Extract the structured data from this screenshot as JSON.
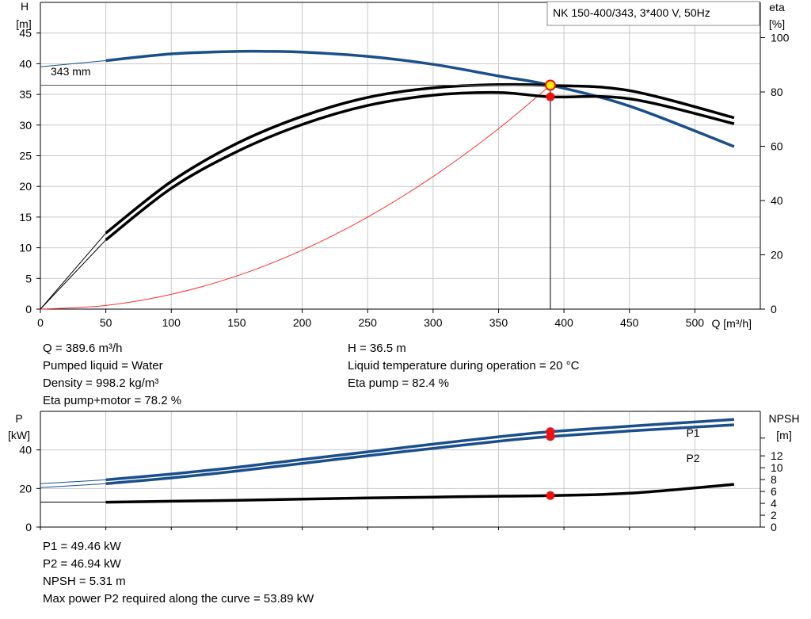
{
  "chart_data": [
    {
      "type": "line",
      "title": "NK 150-400/343, 3*400 V, 50Hz",
      "ylabel_left": "H",
      "ylabel_left_unit": "[m]",
      "ylabel_right": "eta",
      "ylabel_right_unit": "[%]",
      "xlabel": "Q [m³/h]",
      "xlim": [
        0,
        550
      ],
      "ylim_left": [
        0,
        50
      ],
      "ylim_right": [
        0,
        113
      ],
      "x_ticks": [
        0,
        50,
        100,
        150,
        200,
        250,
        300,
        350,
        400,
        450,
        500
      ],
      "y_left_ticks": [
        0,
        5,
        10,
        15,
        20,
        25,
        30,
        35,
        40,
        45
      ],
      "y_right_ticks": [
        0,
        20,
        40,
        60,
        80,
        100
      ],
      "grid": true,
      "curve_label": "343 mm",
      "series": [
        {
          "name": "H",
          "axis": "left",
          "color": "#1a4f8c",
          "x": [
            50,
            100,
            150,
            175,
            200,
            250,
            300,
            350,
            389.6,
            450,
            530
          ],
          "y": [
            40.5,
            41.6,
            42.0,
            42.0,
            41.9,
            41.2,
            39.9,
            38.0,
            36.5,
            33.1,
            26.5
          ]
        },
        {
          "name": "H (extrapolated)",
          "axis": "left",
          "color": "#1a4f8c",
          "x": [
            0,
            50
          ],
          "y": [
            39.5,
            40.5
          ]
        },
        {
          "name": "Eta pump",
          "axis": "right",
          "color": "#000000",
          "x": [
            0,
            50,
            100,
            150,
            200,
            250,
            300,
            350,
            389.6,
            450,
            530
          ],
          "y": [
            0,
            28,
            47,
            61,
            71,
            78,
            81.5,
            82.7,
            82.4,
            80.5,
            70.5
          ]
        },
        {
          "name": "Eta pump+motor",
          "axis": "right",
          "color": "#000000",
          "x": [
            0,
            50,
            100,
            150,
            200,
            250,
            300,
            350,
            389.6,
            450,
            530
          ],
          "y": [
            0,
            25.5,
            44.5,
            58,
            68,
            75,
            78.8,
            79.8,
            78.2,
            77.5,
            68.3
          ]
        },
        {
          "name": "System curve",
          "axis": "left",
          "color": "#ff3030",
          "x": [
            0,
            50,
            100,
            150,
            200,
            250,
            300,
            350,
            389.6
          ],
          "y": [
            0,
            0.6,
            2.4,
            5.4,
            9.6,
            15.0,
            21.6,
            29.4,
            36.5
          ]
        }
      ],
      "duty_point": {
        "Q": 389.6,
        "H": 36.5,
        "eta_pump": 82.4,
        "eta_total": 78.2
      }
    },
    {
      "type": "line",
      "ylabel_left": "P",
      "ylabel_left_unit": "[kW]",
      "ylabel_right": "NPSH",
      "ylabel_right_unit": "[m]",
      "xlim": [
        0,
        550
      ],
      "ylim_left": [
        0,
        60
      ],
      "ylim_right": [
        0,
        19.5
      ],
      "y_left_ticks": [
        0,
        20,
        40
      ],
      "y_right_ticks": [
        0,
        2,
        4,
        6,
        8,
        10,
        12
      ],
      "grid": true,
      "series": [
        {
          "name": "P1",
          "axis": "left",
          "color": "#1a4f8c",
          "x": [
            0,
            50,
            100,
            150,
            200,
            250,
            300,
            350,
            389.6,
            450,
            530
          ],
          "y": [
            22.5,
            24.5,
            27.5,
            31,
            35,
            39,
            43,
            46.8,
            49.46,
            52.3,
            55.8
          ]
        },
        {
          "name": "P2",
          "axis": "left",
          "color": "#1a4f8c",
          "x": [
            0,
            50,
            100,
            150,
            200,
            250,
            300,
            350,
            389.6,
            450,
            530
          ],
          "y": [
            20.5,
            22.5,
            25.5,
            29,
            33,
            37,
            40.8,
            44.5,
            46.94,
            49.8,
            53.0
          ]
        },
        {
          "name": "NPSH",
          "axis": "right",
          "color": "#000000",
          "x": [
            0,
            50,
            100,
            150,
            200,
            250,
            300,
            350,
            389.6,
            450,
            530
          ],
          "y": [
            4.2,
            4.2,
            4.35,
            4.5,
            4.7,
            4.9,
            5.05,
            5.2,
            5.31,
            5.7,
            7.2
          ]
        }
      ],
      "duty_point": {
        "P1": 49.46,
        "P2": 46.94,
        "NPSH": 5.31
      }
    }
  ],
  "top_info": {
    "left": [
      "Q = 389.6 m³/h",
      "Pumped liquid = Water",
      "Density = 998.2 kg/m³",
      "Eta pump+motor = 78.2 %"
    ],
    "right": [
      "H = 36.5 m",
      "Liquid temperature during operation = 20 °C",
      "Eta pump = 82.4 %"
    ]
  },
  "bottom_info": [
    "P1 = 49.46 kW",
    "P2 = 46.94 kW",
    "NPSH = 5.31 m",
    "Max power P2 required along the curve = 53.89 kW"
  ],
  "colors": {
    "head": "#1a4f8c",
    "eta": "#000000",
    "system": "#ff3030",
    "grid": "#c8c8c8",
    "duty_point": "#ee1111",
    "duty_marker": "#ffee00"
  }
}
